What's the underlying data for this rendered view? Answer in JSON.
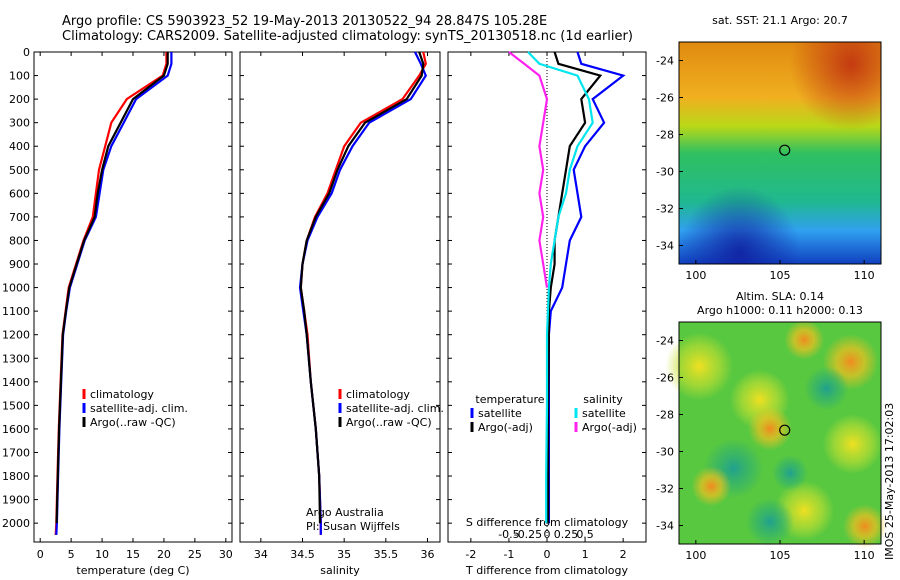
{
  "header": {
    "line1": "Argo profile: CS 5903923_52 19-May-2013 20130522_94 28.847S 105.28E",
    "line2": "Climatology: CARS2009. Satellite-adjusted climatology: synTS_20130518.nc (1d earlier)"
  },
  "colors": {
    "climatology": "#ff0000",
    "satellite": "#0000ff",
    "argo": "#000000",
    "sal_satellite": "#00e5ee",
    "sal_argo": "#ff22ee"
  },
  "depth_ticks": [
    0,
    100,
    200,
    300,
    400,
    500,
    600,
    700,
    800,
    900,
    1000,
    1100,
    1200,
    1300,
    1400,
    1500,
    1600,
    1700,
    1800,
    1900,
    2000
  ],
  "chart_data": [
    {
      "type": "line",
      "id": "temperature",
      "xlabel": "temperature (deg C)",
      "ylabel": "",
      "xlim": [
        -1,
        31
      ],
      "ylim": [
        2080,
        0
      ],
      "xticks": [
        0,
        5,
        10,
        15,
        20,
        25,
        30
      ],
      "legend": [
        "climatology",
        "satellite-adj. clim.",
        "Argo(..raw -QC)"
      ],
      "series": [
        {
          "name": "climatology",
          "color": "#ff0000",
          "points": [
            [
              20.4,
              0
            ],
            [
              20.4,
              50
            ],
            [
              19.8,
              100
            ],
            [
              14,
              200
            ],
            [
              11.5,
              300
            ],
            [
              10.5,
              400
            ],
            [
              9.5,
              500
            ],
            [
              9,
              600
            ],
            [
              8.5,
              700
            ],
            [
              7,
              800
            ],
            [
              5.8,
              900
            ],
            [
              4.6,
              1000
            ],
            [
              4.1,
              1100
            ],
            [
              3.6,
              1200
            ],
            [
              3.3,
              1400
            ],
            [
              3.0,
              1600
            ],
            [
              2.8,
              1800
            ],
            [
              2.6,
              2000
            ],
            [
              2.5,
              2050
            ]
          ]
        },
        {
          "name": "satellite-adj. clim.",
          "color": "#0000ff",
          "points": [
            [
              21.2,
              0
            ],
            [
              21.2,
              50
            ],
            [
              20.6,
              100
            ],
            [
              15.5,
              200
            ],
            [
              13.5,
              300
            ],
            [
              11.5,
              400
            ],
            [
              10.2,
              500
            ],
            [
              9.6,
              600
            ],
            [
              9,
              700
            ],
            [
              7.2,
              800
            ],
            [
              6,
              900
            ],
            [
              4.8,
              1000
            ],
            [
              4.2,
              1100
            ],
            [
              3.7,
              1200
            ],
            [
              3.4,
              1400
            ],
            [
              3.1,
              1600
            ],
            [
              2.9,
              1800
            ],
            [
              2.7,
              2000
            ],
            [
              2.6,
              2050
            ]
          ]
        },
        {
          "name": "Argo(..raw -QC)",
          "color": "#000000",
          "points": [
            [
              20.6,
              0
            ],
            [
              20.6,
              50
            ],
            [
              20.0,
              100
            ],
            [
              15.0,
              200
            ],
            [
              13.0,
              300
            ],
            [
              11.0,
              400
            ],
            [
              10.0,
              500
            ],
            [
              9.3,
              600
            ],
            [
              8.8,
              700
            ],
            [
              7.1,
              800
            ],
            [
              5.9,
              900
            ],
            [
              4.7,
              1000
            ],
            [
              4.15,
              1100
            ],
            [
              3.65,
              1200
            ],
            [
              3.35,
              1400
            ],
            [
              3.05,
              1600
            ],
            [
              2.85,
              1800
            ],
            [
              2.65,
              2000
            ]
          ]
        }
      ]
    },
    {
      "type": "line",
      "id": "salinity",
      "xlabel": "salinity",
      "ylabel": "",
      "xlim": [
        33.75,
        36.15
      ],
      "ylim": [
        2080,
        0
      ],
      "xticks": [
        34,
        34.5,
        35,
        35.5,
        36
      ],
      "legend": [
        "climatology",
        "satellite-adj. clim.",
        "Argo(..raw -QC)"
      ],
      "annotation": [
        "Argo Australia",
        "PI: Susan Wijffels"
      ],
      "series": [
        {
          "name": "climatology",
          "color": "#ff0000",
          "points": [
            [
              35.95,
              0
            ],
            [
              35.98,
              50
            ],
            [
              35.9,
              100
            ],
            [
              35.7,
              200
            ],
            [
              35.2,
              300
            ],
            [
              35.0,
              400
            ],
            [
              34.9,
              500
            ],
            [
              34.8,
              600
            ],
            [
              34.65,
              700
            ],
            [
              34.55,
              800
            ],
            [
              34.5,
              900
            ],
            [
              34.48,
              1000
            ],
            [
              34.52,
              1100
            ],
            [
              34.56,
              1200
            ],
            [
              34.6,
              1400
            ],
            [
              34.66,
              1600
            ],
            [
              34.7,
              1800
            ],
            [
              34.72,
              2000
            ],
            [
              34.72,
              2050
            ]
          ]
        },
        {
          "name": "satellite-adj. clim.",
          "color": "#0000ff",
          "points": [
            [
              35.85,
              0
            ],
            [
              35.92,
              50
            ],
            [
              35.98,
              100
            ],
            [
              35.8,
              200
            ],
            [
              35.3,
              300
            ],
            [
              35.1,
              400
            ],
            [
              34.95,
              500
            ],
            [
              34.85,
              600
            ],
            [
              34.68,
              700
            ],
            [
              34.56,
              800
            ],
            [
              34.5,
              900
            ],
            [
              34.47,
              1000
            ],
            [
              34.51,
              1100
            ],
            [
              34.55,
              1200
            ],
            [
              34.6,
              1400
            ],
            [
              34.66,
              1600
            ],
            [
              34.7,
              1800
            ],
            [
              34.72,
              2000
            ],
            [
              34.72,
              2050
            ]
          ]
        },
        {
          "name": "Argo(..raw -QC)",
          "color": "#000000",
          "points": [
            [
              35.9,
              0
            ],
            [
              35.95,
              50
            ],
            [
              35.93,
              100
            ],
            [
              35.75,
              200
            ],
            [
              35.25,
              300
            ],
            [
              35.05,
              400
            ],
            [
              34.92,
              500
            ],
            [
              34.82,
              600
            ],
            [
              34.66,
              700
            ],
            [
              34.55,
              800
            ],
            [
              34.5,
              900
            ],
            [
              34.48,
              1000
            ],
            [
              34.52,
              1100
            ],
            [
              34.55,
              1200
            ],
            [
              34.6,
              1400
            ],
            [
              34.66,
              1600
            ],
            [
              34.7,
              1800
            ],
            [
              34.71,
              2000
            ]
          ]
        }
      ]
    },
    {
      "type": "line",
      "id": "difference",
      "xlabel": "T difference from climatology",
      "xlabel2": "S difference from climatology",
      "xlim": [
        -2.6,
        2.6
      ],
      "ylim": [
        2080,
        0
      ],
      "xticks": [
        -2,
        -1,
        0,
        1,
        2
      ],
      "xticks_top": [
        "-0.5",
        "-0.25",
        "0",
        "0.25",
        "0.5"
      ],
      "legend_title_left": "temperature",
      "legend_title_right": "salinity",
      "legend_left": [
        "satellite",
        "Argo(-adj)"
      ],
      "legend_right": [
        "satellite",
        "Argo(-adj)"
      ],
      "series": [
        {
          "name": "temperature satellite",
          "color": "#0000ff",
          "points": [
            [
              0.8,
              0
            ],
            [
              0.9,
              50
            ],
            [
              2.0,
              100
            ],
            [
              1.2,
              200
            ],
            [
              1.5,
              300
            ],
            [
              1.0,
              400
            ],
            [
              0.7,
              500
            ],
            [
              0.8,
              600
            ],
            [
              0.9,
              700
            ],
            [
              0.6,
              800
            ],
            [
              0.5,
              900
            ],
            [
              0.4,
              1000
            ],
            [
              0.1,
              1100
            ],
            [
              0.05,
              1200
            ],
            [
              0.05,
              1500
            ],
            [
              0.05,
              1800
            ],
            [
              0.05,
              2000
            ]
          ]
        },
        {
          "name": "temperature Argo(-adj)",
          "color": "#000000",
          "points": [
            [
              0.2,
              0
            ],
            [
              0.3,
              50
            ],
            [
              1.4,
              100
            ],
            [
              0.9,
              200
            ],
            [
              1.0,
              300
            ],
            [
              0.6,
              400
            ],
            [
              0.5,
              500
            ],
            [
              0.4,
              600
            ],
            [
              0.3,
              700
            ],
            [
              0.2,
              800
            ],
            [
              0.2,
              900
            ],
            [
              0.1,
              1000
            ],
            [
              0.05,
              1100
            ],
            [
              0.05,
              1200
            ],
            [
              0.03,
              1500
            ],
            [
              0.03,
              1800
            ],
            [
              0.03,
              2000
            ]
          ]
        },
        {
          "name": "salinity satellite",
          "color": "#00e5ee",
          "points": [
            [
              -0.5,
              0
            ],
            [
              -0.2,
              50
            ],
            [
              0.8,
              100
            ],
            [
              1.1,
              200
            ],
            [
              1.2,
              300
            ],
            [
              0.8,
              400
            ],
            [
              0.6,
              500
            ],
            [
              0.5,
              600
            ],
            [
              0.3,
              700
            ],
            [
              0.2,
              800
            ],
            [
              0.1,
              900
            ],
            [
              0.05,
              1000
            ],
            [
              0.0,
              1200
            ],
            [
              0.0,
              1500
            ],
            [
              -0.02,
              1800
            ],
            [
              -0.02,
              2000
            ]
          ]
        },
        {
          "name": "salinity Argo(-adj)",
          "color": "#ff22ee",
          "points": [
            [
              -1.0,
              0
            ],
            [
              -0.6,
              50
            ],
            [
              -0.2,
              100
            ],
            [
              0.0,
              200
            ],
            [
              -0.1,
              300
            ],
            [
              -0.2,
              400
            ],
            [
              -0.1,
              500
            ],
            [
              -0.2,
              600
            ],
            [
              -0.1,
              700
            ],
            [
              -0.2,
              800
            ],
            [
              -0.1,
              900
            ],
            [
              0.0,
              1000
            ]
          ]
        }
      ]
    },
    {
      "type": "heatmap",
      "id": "sst_map",
      "title": "sat. SST: 21.1  Argo: 20.7",
      "xlim": [
        99,
        111
      ],
      "ylim": [
        -35,
        -23
      ],
      "xticks": [
        100,
        105,
        110
      ],
      "yticks": [
        -24,
        -26,
        -28,
        -30,
        -32,
        -34
      ],
      "marker": {
        "lon": 105.28,
        "lat": -28.847
      }
    },
    {
      "type": "heatmap",
      "id": "sla_map",
      "title": "Altim. SLA: 0.14",
      "subtitle": "Argo h1000: 0.11 h2000: 0.13",
      "xlim": [
        99,
        111
      ],
      "ylim": [
        -35,
        -23
      ],
      "xticks": [
        100,
        105,
        110
      ],
      "yticks": [
        -24,
        -26,
        -28,
        -30,
        -32,
        -34
      ],
      "marker": {
        "lon": 105.28,
        "lat": -28.847
      }
    }
  ],
  "footer": {
    "stamp": "IMOS 25-May-2013 17:02:03"
  }
}
